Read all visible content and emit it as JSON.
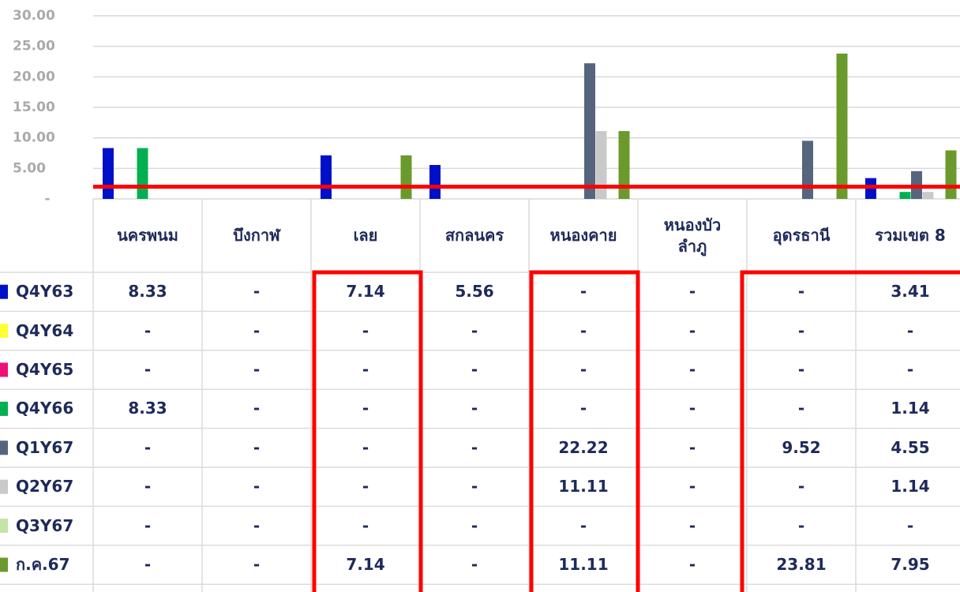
{
  "chart_data": {
    "type": "bar",
    "categories": [
      "นครพนม",
      "บึงกาฬ",
      "เลย",
      "สกลนคร",
      "หนองคาย",
      "หนองบัว\nลำภู",
      "อุดรธานี",
      "รวมเขต 8"
    ],
    "series": [
      {
        "name": "Q4Y63",
        "color": "#0010c8",
        "values": [
          8.33,
          null,
          7.14,
          5.56,
          null,
          null,
          null,
          3.41
        ],
        "value_labels": [
          "8.33",
          "-",
          "7.14",
          "5.56",
          "-",
          "-",
          "-",
          "3.41"
        ]
      },
      {
        "name": "Q4Y64",
        "color": "#ffff33",
        "values": [
          null,
          null,
          null,
          null,
          null,
          null,
          null,
          null
        ],
        "value_labels": [
          "-",
          "-",
          "-",
          "-",
          "-",
          "-",
          "-",
          "-"
        ]
      },
      {
        "name": "Q4Y65",
        "color": "#ee1177",
        "values": [
          null,
          null,
          null,
          null,
          null,
          null,
          null,
          null
        ],
        "value_labels": [
          "-",
          "-",
          "-",
          "-",
          "-",
          "-",
          "-",
          "-"
        ]
      },
      {
        "name": "Q4Y66",
        "color": "#00b050",
        "values": [
          8.33,
          null,
          null,
          null,
          null,
          null,
          null,
          1.14
        ],
        "value_labels": [
          "8.33",
          "-",
          "-",
          "-",
          "-",
          "-",
          "-",
          "1.14"
        ]
      },
      {
        "name": "Q1Y67",
        "color": "#56657e",
        "values": [
          null,
          null,
          null,
          null,
          22.22,
          null,
          9.52,
          4.55
        ],
        "value_labels": [
          "-",
          "-",
          "-",
          "-",
          "22.22",
          "-",
          "9.52",
          "4.55"
        ]
      },
      {
        "name": "Q2Y67",
        "color": "#c9c9c9",
        "values": [
          null,
          null,
          null,
          null,
          11.11,
          null,
          null,
          1.14
        ],
        "value_labels": [
          "-",
          "-",
          "-",
          "-",
          "11.11",
          "-",
          "-",
          "1.14"
        ]
      },
      {
        "name": "Q3Y67",
        "color": "#c6e3a8",
        "values": [
          null,
          null,
          null,
          null,
          null,
          null,
          null,
          null
        ],
        "value_labels": [
          "-",
          "-",
          "-",
          "-",
          "-",
          "-",
          "-",
          "-"
        ]
      },
      {
        "name": "ก.ค.67",
        "color": "#6a9a2c",
        "values": [
          null,
          null,
          7.14,
          null,
          11.11,
          null,
          23.81,
          7.95
        ],
        "value_labels": [
          "-",
          "-",
          "7.14",
          "-",
          "11.11",
          "-",
          "23.81",
          "7.95"
        ]
      }
    ],
    "ylim": [
      0,
      30
    ],
    "yticks": [
      {
        "value": 0,
        "label": "-"
      },
      {
        "value": 5,
        "label": "5.00"
      },
      {
        "value": 10,
        "label": "10.00"
      },
      {
        "value": 15,
        "label": "15.00"
      },
      {
        "value": 20,
        "label": "20.00"
      },
      {
        "value": 25,
        "label": "25.00"
      },
      {
        "value": 30,
        "label": "30.00"
      }
    ],
    "grid": true,
    "reference_line": {
      "value": 2,
      "color": "#ff0000"
    }
  }
}
